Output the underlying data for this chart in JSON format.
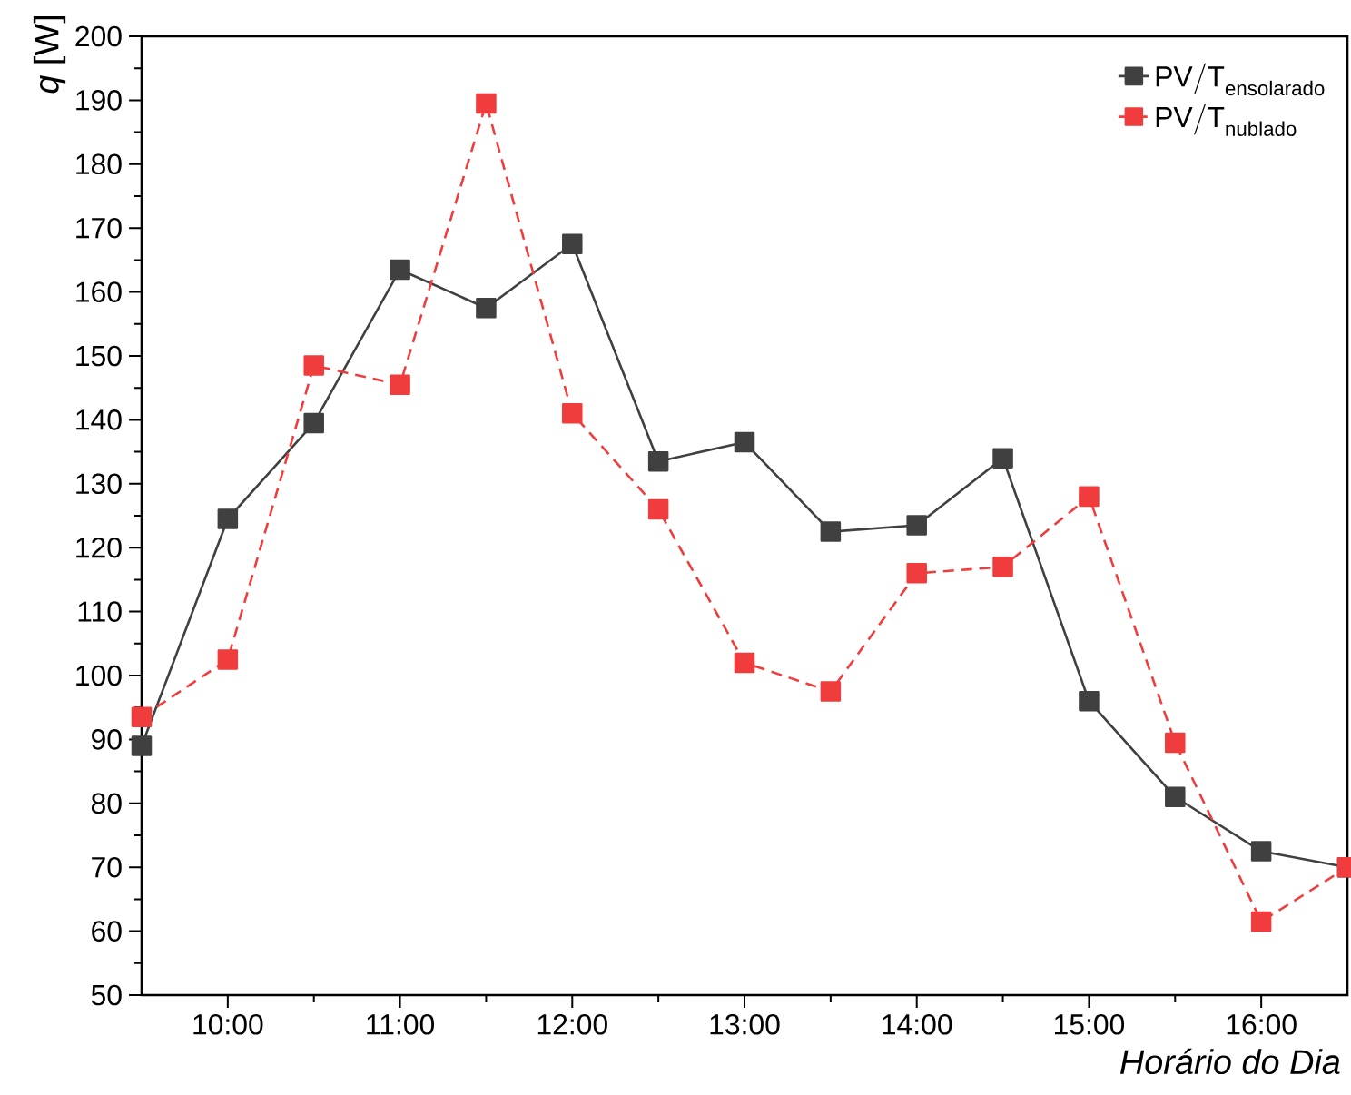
{
  "chart_data": {
    "type": "line",
    "xlabel": "Horário do Dia",
    "ylabel": "*q* [W]",
    "x": [
      9.5,
      10,
      10.5,
      11,
      11.5,
      12,
      12.5,
      13,
      13.5,
      14,
      14.5,
      15,
      15.5,
      16,
      16.5
    ],
    "series": [
      {
        "name": "\\mathrm{PV/T}_{\\mathrm{ensolarado}}",
        "color": "#404040",
        "line_style": "solid",
        "values": [
          89,
          124.5,
          139.5,
          163.5,
          157.5,
          167.5,
          133.5,
          136.5,
          122.5,
          123.5,
          134,
          96,
          81,
          72.5,
          70
        ]
      },
      {
        "name": "\\mathrm{PV/T}_{\\mathrm{nublado}}",
        "color": "#f03c3c",
        "line_style": "dashed",
        "values": [
          93.5,
          102.5,
          148.5,
          145.5,
          189.5,
          141,
          126,
          102,
          97.5,
          116,
          117,
          128,
          89.5,
          61.5,
          70
        ]
      }
    ],
    "xlim": [
      9.5,
      16.5
    ],
    "xticks": [
      {
        "value": 10,
        "label": "10:00"
      },
      {
        "value": 11,
        "label": "11:00"
      },
      {
        "value": 12,
        "label": "12:00"
      },
      {
        "value": 13,
        "label": "13:00"
      },
      {
        "value": 14,
        "label": "14:00"
      },
      {
        "value": 15,
        "label": "15:00"
      },
      {
        "value": 16,
        "label": "16:00"
      }
    ],
    "ylim": [
      50,
      200
    ],
    "yticks": [
      50,
      60,
      70,
      80,
      90,
      100,
      110,
      120,
      130,
      140,
      150,
      160,
      170,
      180,
      190,
      200
    ],
    "marker": "square",
    "legend": "top right",
    "grid": false
  }
}
